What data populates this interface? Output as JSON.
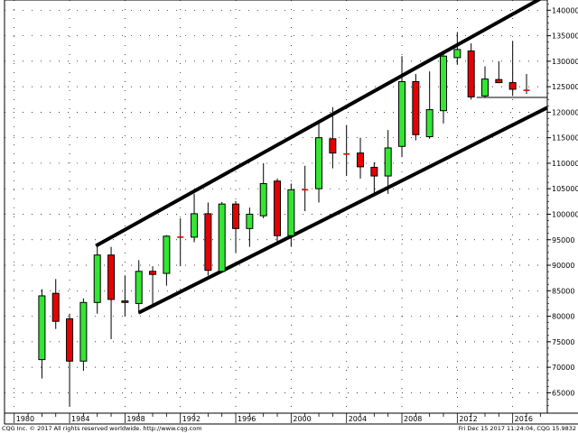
{
  "colors": {
    "up": "#33e633",
    "down": "#e60000",
    "doji": "#e60000",
    "line": "#000000",
    "grid": "#000000"
  },
  "footer": {
    "left": "CQG Inc. © 2017 All rights reserved worldwide. http://www.cqg.com",
    "right": "Fri Dec 15 2017 11:24:04, CQG 15.9832"
  },
  "chart_data": {
    "type": "candlestick",
    "title": "",
    "xlabel": "",
    "ylabel": "",
    "xlim": [
      1979.3,
      2018.5
    ],
    "ylim": [
      61000,
      142000
    ],
    "grid": "dotted",
    "y_ticks": [
      65000,
      70000,
      75000,
      80000,
      85000,
      90000,
      95000,
      100000,
      105000,
      110000,
      115000,
      120000,
      125000,
      130000,
      135000,
      140000
    ],
    "y_tick_labels": [
      "65000",
      "70000",
      "75000",
      "80000",
      "85000",
      "90000",
      "95000",
      "100000",
      "105000",
      "110000",
      "115000",
      "120000",
      "125000",
      "130000",
      "135000",
      "140000"
    ],
    "x_ticks": [
      1980,
      1984,
      1988,
      1992,
      1996,
      2000,
      2004,
      2008,
      2012,
      2016
    ],
    "x_tick_labels": [
      "1980",
      "1984",
      "1988",
      "1992",
      "1996",
      "2000",
      "2004",
      "2008",
      "2012",
      "2016"
    ],
    "candles": [
      {
        "x": 1982,
        "open": 71500,
        "high": 85300,
        "low": 67800,
        "close": 84000
      },
      {
        "x": 1983,
        "open": 84500,
        "high": 87300,
        "low": 77500,
        "close": 79000
      },
      {
        "x": 1984,
        "open": 79500,
        "high": 80500,
        "low": 62300,
        "close": 71200
      },
      {
        "x": 1985,
        "open": 71200,
        "high": 83500,
        "low": 69300,
        "close": 82700
      },
      {
        "x": 1986,
        "open": 82700,
        "high": 94000,
        "low": 80500,
        "close": 92000
      },
      {
        "x": 1987,
        "open": 92000,
        "high": 93600,
        "low": 75500,
        "close": 83300
      },
      {
        "x": 1988,
        "open": 83000,
        "high": 88000,
        "low": 80000,
        "close": 82700
      },
      {
        "x": 1989,
        "open": 82500,
        "high": 91000,
        "low": 80500,
        "close": 88800
      },
      {
        "x": 1990,
        "open": 88800,
        "high": 89800,
        "low": 82000,
        "close": 88200
      },
      {
        "x": 1991,
        "open": 88400,
        "high": 95900,
        "low": 86000,
        "close": 95700
      },
      {
        "x": 1992,
        "open": 95500,
        "high": 99200,
        "low": 89800,
        "close": 95500
      },
      {
        "x": 1993,
        "open": 95500,
        "high": 104000,
        "low": 94500,
        "close": 100100
      },
      {
        "x": 1994,
        "open": 100100,
        "high": 102300,
        "low": 88000,
        "close": 89000
      },
      {
        "x": 1995,
        "open": 88800,
        "high": 102400,
        "low": 88500,
        "close": 102000
      },
      {
        "x": 1996,
        "open": 102000,
        "high": 102600,
        "low": 92500,
        "close": 97200
      },
      {
        "x": 1997,
        "open": 97200,
        "high": 101300,
        "low": 93600,
        "close": 100000
      },
      {
        "x": 1998,
        "open": 99700,
        "high": 110000,
        "low": 99200,
        "close": 106000
      },
      {
        "x": 1999,
        "open": 106500,
        "high": 107000,
        "low": 94500,
        "close": 95800
      },
      {
        "x": 2000,
        "open": 95800,
        "high": 106000,
        "low": 93600,
        "close": 104800
      },
      {
        "x": 2001,
        "open": 104800,
        "high": 109500,
        "low": 100600,
        "close": 104800
      },
      {
        "x": 2002,
        "open": 105000,
        "high": 118500,
        "low": 102300,
        "close": 115000
      },
      {
        "x": 2003,
        "open": 114800,
        "high": 121000,
        "low": 109000,
        "close": 112000
      },
      {
        "x": 2004,
        "open": 111800,
        "high": 117500,
        "low": 107500,
        "close": 111800
      },
      {
        "x": 2005,
        "open": 112000,
        "high": 115000,
        "low": 107000,
        "close": 109300
      },
      {
        "x": 2006,
        "open": 109200,
        "high": 110200,
        "low": 103800,
        "close": 107500
      },
      {
        "x": 2007,
        "open": 107500,
        "high": 116500,
        "low": 104000,
        "close": 113000
      },
      {
        "x": 2008,
        "open": 113300,
        "high": 131000,
        "low": 111200,
        "close": 126000
      },
      {
        "x": 2009,
        "open": 126000,
        "high": 127500,
        "low": 114500,
        "close": 115600
      },
      {
        "x": 2010,
        "open": 115200,
        "high": 128000,
        "low": 114800,
        "close": 120500
      },
      {
        "x": 2011,
        "open": 120300,
        "high": 131700,
        "low": 117800,
        "close": 131000
      },
      {
        "x": 2012,
        "open": 130700,
        "high": 135700,
        "low": 129300,
        "close": 132300
      },
      {
        "x": 2013,
        "open": 132000,
        "high": 133500,
        "low": 122500,
        "close": 123000
      },
      {
        "x": 2014,
        "open": 123200,
        "high": 129000,
        "low": 122800,
        "close": 126500
      },
      {
        "x": 2015,
        "open": 126400,
        "high": 130000,
        "low": 125700,
        "close": 125800
      },
      {
        "x": 2016,
        "open": 125800,
        "high": 134000,
        "low": 123200,
        "close": 124500
      },
      {
        "x": 2017,
        "open": 124500,
        "high": 127500,
        "low": 123600,
        "close": 124300
      }
    ],
    "trendlines": [
      {
        "name": "channel-upper",
        "from": [
          1985.9,
          93800
        ],
        "to": [
          2018.5,
          143000
        ]
      },
      {
        "name": "channel-lower",
        "from": [
          1989.0,
          80700
        ],
        "to": [
          2018.5,
          120900
        ]
      },
      {
        "name": "support-horizontal",
        "from": [
          2013.4,
          122900
        ],
        "to": [
          2018.5,
          122900
        ]
      }
    ]
  }
}
